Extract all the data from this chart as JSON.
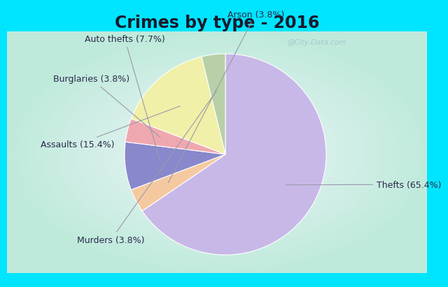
{
  "title": "Crimes by type - 2016",
  "slices": [
    {
      "label": "Thefts (65.4%)",
      "value": 65.4,
      "color": "#c8b8e8"
    },
    {
      "label": "Arson (3.8%)",
      "value": 3.8,
      "color": "#f5c9a0"
    },
    {
      "label": "Auto thefts (7.7%)",
      "value": 7.7,
      "color": "#8888cc"
    },
    {
      "label": "Burglaries (3.8%)",
      "value": 3.8,
      "color": "#f0a8b0"
    },
    {
      "label": "Assaults (15.4%)",
      "value": 15.4,
      "color": "#f0f0a8"
    },
    {
      "label": "Murders (3.8%)",
      "value": 3.8,
      "color": "#b8d0a8"
    }
  ],
  "background_top": "#00e5ff",
  "background_main_center": "#f0f0f8",
  "background_main_edge": "#c0e8d8",
  "title_fontsize": 17,
  "label_fontsize": 9,
  "watermark": "@City-Data.com",
  "startangle": 90
}
